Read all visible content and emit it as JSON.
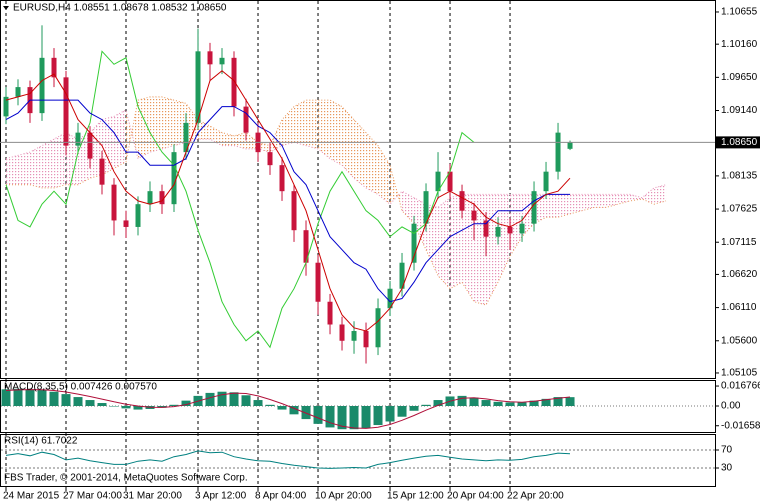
{
  "footer": "FBS Trader, © 2001-2014, MetaQuotes Software Corp.",
  "chart_data": [
    {
      "type": "candlestick",
      "title": "EURUSD,H4  1.08551 1.08678 1.08532 1.08650",
      "x": [
        0,
        1,
        2,
        3,
        4,
        5,
        6,
        7,
        8,
        9,
        10,
        11,
        12,
        13,
        14,
        15,
        16,
        17,
        18,
        19,
        20,
        21,
        22,
        23,
        24,
        25,
        26,
        27,
        28,
        29,
        30,
        31,
        32,
        33,
        34,
        35,
        36,
        37,
        38,
        39,
        40,
        41,
        42,
        43,
        44,
        45,
        46,
        47,
        48,
        49,
        50,
        51,
        52,
        53,
        54,
        55
      ],
      "open": [
        1.0905,
        1.0935,
        1.095,
        1.091,
        1.0995,
        1.0965,
        1.086,
        1.088,
        1.084,
        1.08,
        1.0745,
        1.0735,
        1.077,
        1.079,
        1.077,
        1.085,
        1.0895,
        1.1005,
        1.0985,
        1.0995,
        1.092,
        1.088,
        1.085,
        1.083,
        1.079,
        1.073,
        1.068,
        1.062,
        1.0585,
        1.056,
        1.0575,
        1.055,
        1.061,
        1.064,
        1.068,
        1.074,
        1.079,
        1.082,
        1.079,
        1.076,
        1.0745,
        1.072,
        1.0735,
        1.0725,
        1.074,
        1.079,
        1.082,
        1.08551,
        null,
        null,
        null,
        null,
        null,
        null,
        null,
        null
      ],
      "high": [
        1.095,
        1.0962,
        1.096,
        1.1045,
        1.101,
        1.0975,
        1.0895,
        1.089,
        1.0852,
        1.081,
        1.076,
        1.0782,
        1.0805,
        1.08,
        1.0862,
        1.091,
        1.104,
        1.1018,
        1.101,
        1.1005,
        1.0932,
        1.0895,
        1.0865,
        1.0842,
        1.08,
        1.0745,
        1.0692,
        1.0632,
        1.0597,
        1.059,
        1.0588,
        1.0625,
        1.0652,
        1.0695,
        1.0752,
        1.0802,
        1.085,
        1.0832,
        1.08,
        1.0772,
        1.0758,
        1.075,
        1.0748,
        1.0752,
        1.0805,
        1.0835,
        1.0895,
        1.08678,
        null,
        null,
        null,
        null,
        null,
        null,
        null,
        null
      ],
      "low": [
        1.0893,
        1.0922,
        1.0895,
        1.0898,
        1.095,
        1.0845,
        1.0848,
        1.0825,
        1.0785,
        1.0722,
        1.0718,
        1.0722,
        1.0758,
        1.0755,
        1.0758,
        1.0838,
        1.0885,
        1.096,
        1.097,
        1.0905,
        1.0868,
        1.0835,
        1.0815,
        1.0775,
        1.0712,
        1.066,
        1.06,
        1.057,
        1.0545,
        1.054,
        1.0525,
        1.0538,
        1.0598,
        1.0628,
        1.0668,
        1.0728,
        1.0778,
        1.0778,
        1.0748,
        1.0715,
        1.069,
        1.0708,
        1.07,
        1.0712,
        1.0728,
        1.0778,
        1.0808,
        1.08532,
        null,
        null,
        null,
        null,
        null,
        null,
        null,
        null
      ],
      "close": [
        1.0935,
        1.095,
        1.091,
        1.0995,
        1.0965,
        1.086,
        1.088,
        1.084,
        1.08,
        1.0745,
        1.0735,
        1.077,
        1.079,
        1.077,
        1.085,
        1.0895,
        1.1005,
        1.0985,
        1.0995,
        1.092,
        1.088,
        1.085,
        1.083,
        1.079,
        1.073,
        1.068,
        1.062,
        1.0585,
        1.056,
        1.0575,
        1.055,
        1.061,
        1.064,
        1.068,
        1.074,
        1.079,
        1.082,
        1.079,
        1.076,
        1.0745,
        1.072,
        1.0735,
        1.0725,
        1.074,
        1.079,
        1.082,
        1.088,
        1.0865,
        null,
        null,
        null,
        null,
        null,
        null,
        null,
        null
      ],
      "up_color": "#1f9a5c",
      "down_color": "#c8143c",
      "series": [
        {
          "kind": "cloud",
          "color": "#e58fb5",
          "values": [
            1.084,
            1.0845,
            1.085,
            1.086,
            1.087,
            1.088,
            1.087,
            1.088,
            1.09,
            1.0905,
            1.0915,
            1.084,
            1.085,
            1.0855,
            1.086,
            1.0865,
            1.087,
            1.087,
            1.086,
            1.086,
            1.0855,
            1.0855,
            1.085,
            1.086,
            1.0865,
            1.086,
            1.0855,
            1.084,
            1.083,
            1.081,
            1.0795,
            1.0785,
            1.077,
            1.079,
            1.078,
            1.077,
            1.0765,
            1.078,
            1.0785,
            1.0785,
            1.0785,
            1.0785,
            1.0785,
            1.0785,
            1.0785,
            1.0785,
            1.0785,
            1.0785,
            1.0785,
            1.0785,
            1.0785,
            1.0785,
            1.0785,
            1.078,
            1.0795,
            1.08
          ]
        },
        {
          "kind": "cloud",
          "color": "#e8965a",
          "values": [
            1.08,
            1.08,
            1.08,
            1.0795,
            1.0795,
            1.08,
            1.08,
            1.081,
            1.0815,
            1.0825,
            1.0835,
            1.093,
            1.0935,
            1.0935,
            1.093,
            1.0925,
            1.09,
            1.089,
            1.088,
            1.0875,
            1.088,
            1.0865,
            1.086,
            1.09,
            1.092,
            1.093,
            1.093,
            1.093,
            1.092,
            1.09,
            1.088,
            1.086,
            1.083,
            1.076,
            1.074,
            1.07,
            1.066,
            1.064,
            1.065,
            1.062,
            1.0615,
            1.065,
            1.069,
            1.072,
            1.074,
            1.075,
            1.075,
            1.0755,
            1.076,
            1.0765,
            1.0765,
            1.077,
            1.0775,
            1.0778,
            1.077,
            1.0775
          ]
        },
        {
          "kind": "line",
          "color": "#33cc33",
          "values": [
            1.08,
            1.0745,
            1.0735,
            1.077,
            1.079,
            1.077,
            1.085,
            1.0895,
            1.1005,
            1.0985,
            1.0995,
            1.092,
            1.088,
            1.085,
            1.083,
            1.079,
            1.073,
            1.068,
            1.062,
            1.0585,
            1.056,
            1.0575,
            1.055,
            1.061,
            1.064,
            1.068,
            1.074,
            1.079,
            1.082,
            1.079,
            1.076,
            1.0745,
            1.072,
            1.0735,
            1.0725,
            1.074,
            1.079,
            1.082,
            1.088,
            1.0865,
            null,
            null,
            null,
            null,
            null,
            null,
            null,
            null,
            null,
            null,
            null,
            null,
            null,
            null,
            null,
            null
          ]
        },
        {
          "kind": "line",
          "color": "#0000cc",
          "values": [
            1.09,
            1.091,
            1.093,
            1.093,
            1.093,
            1.093,
            1.093,
            1.091,
            1.09,
            1.088,
            1.085,
            1.085,
            1.083,
            1.083,
            1.083,
            1.084,
            1.088,
            1.09,
            1.092,
            1.092,
            1.091,
            1.089,
            1.088,
            1.086,
            1.082,
            1.08,
            1.076,
            1.072,
            1.07,
            1.068,
            1.067,
            1.064,
            1.062,
            1.0625,
            1.065,
            1.068,
            1.07,
            1.072,
            1.073,
            1.074,
            1.074,
            1.076,
            1.076,
            1.076,
            1.0775,
            1.0785,
            1.0785,
            1.0785,
            null,
            null,
            null,
            null,
            null,
            null,
            null,
            null
          ]
        },
        {
          "kind": "line",
          "color": "#cc0000",
          "values": [
            1.093,
            1.0935,
            1.094,
            1.096,
            1.097,
            1.094,
            1.09,
            1.088,
            1.086,
            1.082,
            1.079,
            1.0775,
            1.077,
            1.0775,
            1.08,
            1.085,
            1.09,
            1.096,
            1.0975,
            1.096,
            1.093,
            1.09,
            1.087,
            1.084,
            1.08,
            1.076,
            1.07,
            1.064,
            1.06,
            1.058,
            1.0575,
            1.059,
            1.061,
            1.064,
            1.069,
            1.074,
            1.078,
            1.079,
            1.078,
            1.077,
            1.075,
            1.074,
            1.0735,
            1.0745,
            1.077,
            1.0785,
            1.079,
            1.081,
            null,
            null,
            null,
            null,
            null,
            null,
            null,
            null
          ]
        }
      ],
      "last_price": {
        "value": 1.0865,
        "label": "1.08650"
      },
      "xlim": [
        -0.5,
        59.08
      ],
      "xticks": [
        {
          "value": 0,
          "label": "24 Mar 2015"
        },
        {
          "value": 5,
          "label": "27 Mar 04:00"
        },
        {
          "value": 10,
          "label": "31 Mar 20:00"
        },
        {
          "value": 16,
          "label": "3 Apr 12:00"
        },
        {
          "value": 21,
          "label": "8 Apr 04:00"
        },
        {
          "value": 26,
          "label": "10 Apr 20:00"
        },
        {
          "value": 32,
          "label": "15 Apr 12:00"
        },
        {
          "value": 37,
          "label": "20 Apr 04:00"
        },
        {
          "value": 42,
          "label": "22 Apr 20:00"
        }
      ],
      "xgrid": true,
      "ylim": [
        1.05043,
        1.10793
      ],
      "yticks": [
        1.10655,
        {
          "value": 1.1016,
          "label": "1.10160"
        },
        {
          "value": 1.0965,
          "label": "1.09650"
        },
        {
          "value": 1.0914,
          "label": "1.09140"
        },
        1.08135,
        1.07625,
        1.07115,
        {
          "value": 1.0662,
          "label": "1.06620"
        },
        {
          "value": 1.0611,
          "label": "1.06110"
        },
        {
          "value": 1.056,
          "label": "1.05600"
        },
        1.05105
      ]
    },
    {
      "type": "bar",
      "title": "MACD(8,35,5) 0.007426 0.007570",
      "x": [
        0,
        1,
        2,
        3,
        4,
        5,
        6,
        7,
        8,
        9,
        10,
        11,
        12,
        13,
        14,
        15,
        16,
        17,
        18,
        19,
        20,
        21,
        22,
        23,
        24,
        25,
        26,
        27,
        28,
        29,
        30,
        31,
        32,
        33,
        34,
        35,
        36,
        37,
        38,
        39,
        40,
        41,
        42,
        43,
        44,
        45,
        46,
        47
      ],
      "series": [
        {
          "kind": "bar",
          "color": "#1a8a6a",
          "values": [
            0.014,
            0.0145,
            0.014,
            0.0135,
            0.012,
            0.01,
            0.0075,
            0.005,
            0.0025,
            0.0,
            -0.002,
            -0.003,
            -0.0025,
            -0.0015,
            0.001,
            0.0045,
            0.0085,
            0.011,
            0.012,
            0.0115,
            0.009,
            0.005,
            0.001,
            -0.003,
            -0.007,
            -0.011,
            -0.015,
            -0.018,
            -0.0195,
            -0.0195,
            -0.0185,
            -0.016,
            -0.013,
            -0.009,
            -0.004,
            0.001,
            0.005,
            0.008,
            0.0085,
            0.007,
            0.005,
            0.0035,
            0.003,
            0.003,
            0.0045,
            0.006,
            0.0075,
            0.007426
          ]
        },
        {
          "kind": "line",
          "color": "#b0103a",
          "values": [
            0.013,
            0.0135,
            0.0138,
            0.0137,
            0.013,
            0.0118,
            0.01,
            0.008,
            0.0058,
            0.0035,
            0.0015,
            0.0,
            -0.001,
            -0.0012,
            -0.0005,
            0.0012,
            0.004,
            0.007,
            0.0095,
            0.0108,
            0.0105,
            0.0085,
            0.0055,
            0.002,
            -0.002,
            -0.006,
            -0.01,
            -0.014,
            -0.017,
            -0.0185,
            -0.0188,
            -0.0178,
            -0.0155,
            -0.012,
            -0.008,
            -0.0035,
            0.0005,
            0.004,
            0.0065,
            0.007,
            0.006,
            0.0045,
            0.0035,
            0.0032,
            0.004,
            0.0052,
            0.0065,
            0.00757
          ]
        }
      ],
      "xlim": [
        -0.5,
        59.08
      ],
      "ylim": [
        -0.021,
        0.021
      ],
      "yticks": [
        0.016766,
        {
          "value": 0,
          "label": "0.00"
        },
        -0.016581
      ],
      "zero_line": true
    },
    {
      "type": "line",
      "title": "RSI(14) 61.7022",
      "x": [
        0,
        1,
        2,
        3,
        4,
        5,
        6,
        7,
        8,
        9,
        10,
        11,
        12,
        13,
        14,
        15,
        16,
        17,
        18,
        19,
        20,
        21,
        22,
        23,
        24,
        25,
        26,
        27,
        28,
        29,
        30,
        31,
        32,
        33,
        34,
        35,
        36,
        37,
        38,
        39,
        40,
        41,
        42,
        43,
        44,
        45,
        46,
        47
      ],
      "series": [
        {
          "kind": "line",
          "color": "#008080",
          "values": [
            58,
            62,
            57,
            65,
            60,
            48,
            52,
            46,
            42,
            38,
            38,
            45,
            48,
            45,
            55,
            60,
            68,
            64,
            65,
            55,
            50,
            46,
            45,
            40,
            36,
            33,
            30,
            29,
            30,
            31,
            30,
            38,
            42,
            47,
            52,
            56,
            58,
            54,
            50,
            48,
            46,
            48,
            47,
            49,
            55,
            58,
            63,
            61.7022
          ]
        }
      ],
      "xlim": [
        -0.5,
        59.08
      ],
      "ylim": [
        -7.8,
        103.3
      ],
      "yticks": [
        70,
        30
      ],
      "level_lines": true
    }
  ]
}
